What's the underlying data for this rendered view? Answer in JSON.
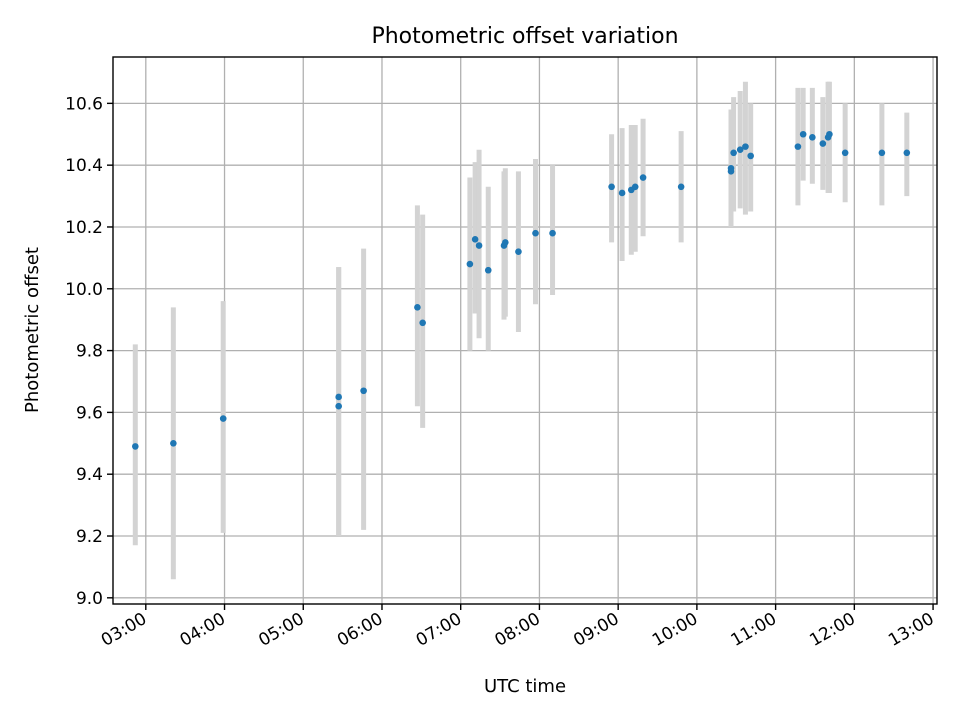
{
  "chart_data": {
    "type": "scatter",
    "title": "Photometric offset variation",
    "xlabel": "UTC time",
    "ylabel": "Photometric offset",
    "xlim": [
      "02:35",
      "13:03"
    ],
    "ylim": [
      8.98,
      10.75
    ],
    "x_ticks": [
      "03:00",
      "04:00",
      "05:00",
      "06:00",
      "07:00",
      "08:00",
      "09:00",
      "10:00",
      "11:00",
      "12:00",
      "13:00"
    ],
    "y_ticks": [
      "9.0",
      "9.2",
      "9.4",
      "9.6",
      "9.8",
      "10.0",
      "10.2",
      "10.4",
      "10.6"
    ],
    "grid": true,
    "marker_color": "#1f77b4",
    "errorbar_color": "#d3d3d3",
    "points": [
      {
        "x": "02:52",
        "y": 9.49,
        "lo": 9.17,
        "hi": 9.82
      },
      {
        "x": "03:21",
        "y": 9.5,
        "lo": 9.06,
        "hi": 9.94
      },
      {
        "x": "03:59",
        "y": 9.58,
        "lo": 9.21,
        "hi": 9.96
      },
      {
        "x": "05:27",
        "y": 9.65,
        "lo": 9.2,
        "hi": 10.07
      },
      {
        "x": "05:27",
        "y": 9.62,
        "lo": 9.2,
        "hi": 10.07
      },
      {
        "x": "05:46",
        "y": 9.67,
        "lo": 9.22,
        "hi": 10.13
      },
      {
        "x": "06:27",
        "y": 9.94,
        "lo": 9.62,
        "hi": 10.27
      },
      {
        "x": "06:31",
        "y": 9.89,
        "lo": 9.55,
        "hi": 10.24
      },
      {
        "x": "07:07",
        "y": 10.08,
        "lo": 9.8,
        "hi": 10.36
      },
      {
        "x": "07:11",
        "y": 10.16,
        "lo": 9.92,
        "hi": 10.41
      },
      {
        "x": "07:14",
        "y": 10.14,
        "lo": 9.84,
        "hi": 10.45
      },
      {
        "x": "07:21",
        "y": 10.06,
        "lo": 9.8,
        "hi": 10.33
      },
      {
        "x": "07:33",
        "y": 10.14,
        "lo": 9.9,
        "hi": 10.38
      },
      {
        "x": "07:34",
        "y": 10.15,
        "lo": 9.91,
        "hi": 10.39
      },
      {
        "x": "07:44",
        "y": 10.12,
        "lo": 9.86,
        "hi": 10.38
      },
      {
        "x": "07:57",
        "y": 10.18,
        "lo": 9.95,
        "hi": 10.42
      },
      {
        "x": "08:10",
        "y": 10.18,
        "lo": 9.98,
        "hi": 10.4
      },
      {
        "x": "08:55",
        "y": 10.33,
        "lo": 10.15,
        "hi": 10.5
      },
      {
        "x": "09:03",
        "y": 10.31,
        "lo": 10.09,
        "hi": 10.52
      },
      {
        "x": "09:10",
        "y": 10.32,
        "lo": 10.11,
        "hi": 10.53
      },
      {
        "x": "09:13",
        "y": 10.33,
        "lo": 10.12,
        "hi": 10.53
      },
      {
        "x": "09:19",
        "y": 10.36,
        "lo": 10.17,
        "hi": 10.55
      },
      {
        "x": "09:48",
        "y": 10.33,
        "lo": 10.15,
        "hi": 10.51
      },
      {
        "x": "10:26",
        "y": 10.39,
        "lo": 10.2,
        "hi": 10.58
      },
      {
        "x": "10:26",
        "y": 10.38,
        "lo": 10.2,
        "hi": 10.58
      },
      {
        "x": "10:28",
        "y": 10.44,
        "lo": 10.25,
        "hi": 10.62
      },
      {
        "x": "10:33",
        "y": 10.45,
        "lo": 10.26,
        "hi": 10.64
      },
      {
        "x": "10:37",
        "y": 10.46,
        "lo": 10.24,
        "hi": 10.67
      },
      {
        "x": "10:41",
        "y": 10.43,
        "lo": 10.25,
        "hi": 10.6
      },
      {
        "x": "11:17",
        "y": 10.46,
        "lo": 10.27,
        "hi": 10.65
      },
      {
        "x": "11:21",
        "y": 10.5,
        "lo": 10.35,
        "hi": 10.65
      },
      {
        "x": "11:28",
        "y": 10.49,
        "lo": 10.34,
        "hi": 10.65
      },
      {
        "x": "11:36",
        "y": 10.47,
        "lo": 10.32,
        "hi": 10.62
      },
      {
        "x": "11:40",
        "y": 10.49,
        "lo": 10.31,
        "hi": 10.67
      },
      {
        "x": "11:41",
        "y": 10.5,
        "lo": 10.31,
        "hi": 10.67
      },
      {
        "x": "11:53",
        "y": 10.44,
        "lo": 10.28,
        "hi": 10.6
      },
      {
        "x": "12:21",
        "y": 10.44,
        "lo": 10.27,
        "hi": 10.6
      },
      {
        "x": "12:40",
        "y": 10.44,
        "lo": 10.3,
        "hi": 10.57
      }
    ]
  }
}
